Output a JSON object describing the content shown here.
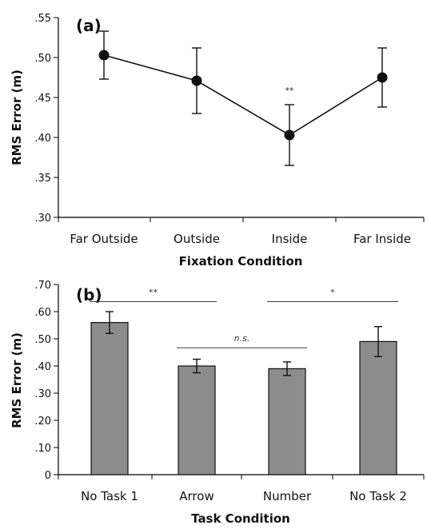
{
  "chart_data": [
    {
      "panel_label": "(a)",
      "type": "line",
      "xlabel": "Fixation Condition",
      "ylabel": "RMS Error (m)",
      "categories": [
        "Far Outside",
        "Outside",
        "Inside",
        "Far Inside"
      ],
      "values": [
        0.503,
        0.471,
        0.403,
        0.475
      ],
      "error": [
        0.03,
        0.041,
        0.038,
        0.037
      ],
      "ylim": [
        0.3,
        0.55
      ],
      "yticks": [
        ".30",
        ".35",
        ".40",
        ".45",
        ".50",
        ".55"
      ],
      "yticks_values": [
        0.3,
        0.35,
        0.4,
        0.45,
        0.5,
        0.55
      ],
      "annotations": [
        {
          "text": "**",
          "category": "Inside",
          "y": 0.459
        }
      ],
      "marker_color": "#111111"
    },
    {
      "panel_label": "(b)",
      "type": "bar",
      "xlabel": "Task Condition",
      "ylabel": "RMS Error (m)",
      "categories": [
        "No Task 1",
        "Arrow",
        "Number",
        "No Task 2"
      ],
      "values": [
        0.56,
        0.4,
        0.39,
        0.49
      ],
      "error": [
        0.04,
        0.025,
        0.025,
        0.055
      ],
      "ylim": [
        0,
        0.7
      ],
      "yticks": [
        "0",
        ".10",
        ".20",
        ".30",
        ".40",
        ".50",
        ".60",
        ".70"
      ],
      "yticks_values": [
        0,
        0.1,
        0.2,
        0.3,
        0.4,
        0.5,
        0.6,
        0.7
      ],
      "bar_color": "#8c8c8c",
      "significance": [
        {
          "text": "**",
          "from": "No Task 1",
          "to": "Arrow",
          "y": 0.637,
          "italic": false
        },
        {
          "text": "*",
          "from": "Number",
          "to": "No Task 2",
          "y": 0.637,
          "italic": false
        },
        {
          "text": "n.s.",
          "from": "Arrow",
          "to": "Number",
          "y": 0.467,
          "italic": true
        }
      ]
    }
  ]
}
